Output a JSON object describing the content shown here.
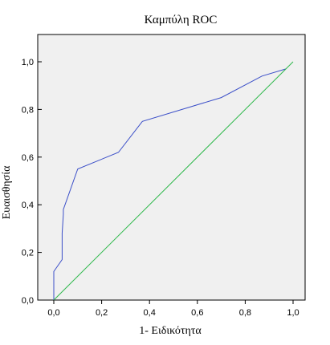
{
  "chart_data": {
    "type": "line",
    "title": "Καμπύλη ROC",
    "xlabel": "1- Ειδικότητα",
    "ylabel": "Ευαισθησία",
    "xlim": [
      0,
      1
    ],
    "ylim": [
      0,
      1
    ],
    "x_ticks": [
      "0,0",
      "0,2",
      "0,4",
      "0,6",
      "0,8",
      "1,0"
    ],
    "y_ticks": [
      "0,0",
      "0,2",
      "0,4",
      "0,6",
      "0,8",
      "1,0"
    ],
    "grid": false,
    "plot_background": "#f0f0f0",
    "series": [
      {
        "color": "#3b4fc8",
        "x": [
          0.0,
          0.0,
          0.0,
          0.035,
          0.035,
          0.04,
          0.04,
          0.1,
          0.27,
          0.37,
          0.7,
          0.87,
          0.97
        ],
        "y": [
          0.0,
          0.07,
          0.12,
          0.17,
          0.28,
          0.36,
          0.38,
          0.55,
          0.62,
          0.75,
          0.85,
          0.94,
          0.97
        ]
      },
      {
        "color": "#2db84a",
        "x": [
          0,
          1
        ],
        "y": [
          0,
          1
        ]
      }
    ]
  }
}
